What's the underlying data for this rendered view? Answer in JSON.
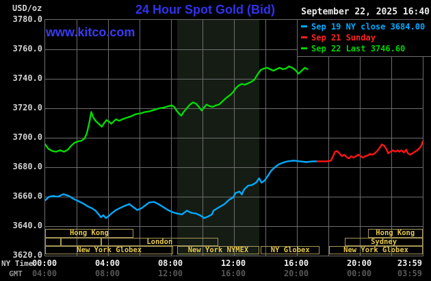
{
  "header": {
    "unit_label": "USD/oz",
    "title": "24 Hour Spot Gold (Bid)",
    "datetime": "September 22, 2025 16:40",
    "watermark": "www.kitco.com"
  },
  "legend": {
    "items": [
      {
        "label": "Sep 19 NY close 3684.00",
        "color": "#00aaff"
      },
      {
        "label": "Sep 21 Sunday",
        "color": "#ff2222"
      },
      {
        "label": "Sep 22 Last 3746.60",
        "color": "#00d400"
      }
    ]
  },
  "axes": {
    "y_ticks": [
      "3780.0",
      "3760.0",
      "3740.0",
      "3720.0",
      "3700.0",
      "3680.0",
      "3660.0",
      "3640.0",
      "3620.0"
    ],
    "x_rows": [
      {
        "label": "NY Time",
        "label_color": "#c8c8c8",
        "tick_color": "#efefef",
        "ticks": [
          "00:00",
          "04:00",
          "08:00",
          "12:00",
          "16:00",
          "20:00",
          "23:59"
        ]
      },
      {
        "label": "GMT",
        "label_color": "#929292",
        "tick_color": "#575757",
        "ticks": [
          "04:00",
          "08:00",
          "12:00",
          "16:00",
          "20:00",
          "00:00",
          "03:59"
        ]
      }
    ],
    "tick_hours": [
      0,
      4,
      8,
      12,
      16,
      20,
      24
    ]
  },
  "sessions": {
    "rows": [
      {
        "boxes": [
          {
            "label": "Hong Kong",
            "t0": 0,
            "t1": 5.6
          },
          {
            "label": "Hong Kong",
            "t0": 20.5,
            "t1": 24
          }
        ]
      },
      {
        "boxes": [
          {
            "label": "",
            "t0": 0,
            "t1": 1.0
          },
          {
            "label": "",
            "t0": 1.0,
            "t1": 3.55
          },
          {
            "label": "London",
            "t0": 3.55,
            "t1": 11.0
          },
          {
            "label": "Sydney",
            "t0": 19.05,
            "t1": 24
          }
        ]
      },
      {
        "boxes": [
          {
            "label": "New York Globex",
            "t0": 0,
            "t1": 8.15
          },
          {
            "label": "New York NYMEX",
            "t0": 8.4,
            "t1": 13.6
          },
          {
            "label": "NY Globex",
            "t0": 13.7,
            "t1": 17.45
          },
          {
            "label": "New York Globex",
            "t0": 18.05,
            "t1": 24
          }
        ]
      }
    ]
  },
  "chart_data": {
    "type": "line",
    "title": "24 Hour Spot Gold (Bid)",
    "xlabel": "NY Time (hours 00:00-23:59)",
    "ylabel": "USD/oz",
    "x_range_hours": [
      0,
      24
    ],
    "ylim": [
      3620,
      3780
    ],
    "y_gridline_step": 20,
    "x_gridline_step_hours": 2,
    "grid": true,
    "legend_position": "top-right",
    "nymex_shade_hours": [
      8.4,
      13.6
    ],
    "series": [
      {
        "name": "Sep 19 NY close 3684.00",
        "color": "#00aaff",
        "points": [
          [
            0,
            3657.5
          ],
          [
            0.25,
            3660
          ],
          [
            0.5,
            3660.5
          ],
          [
            0.8,
            3660
          ],
          [
            1.16,
            3661.7
          ],
          [
            1.5,
            3660.5
          ],
          [
            1.8,
            3658.5
          ],
          [
            2.1,
            3657
          ],
          [
            2.4,
            3655.5
          ],
          [
            2.7,
            3653.5
          ],
          [
            3.0,
            3652
          ],
          [
            3.2,
            3650.5
          ],
          [
            3.4,
            3648
          ],
          [
            3.55,
            3646
          ],
          [
            3.7,
            3647.5
          ],
          [
            3.85,
            3645.5
          ],
          [
            4.0,
            3646.5
          ],
          [
            4.2,
            3648.5
          ],
          [
            4.5,
            3651
          ],
          [
            4.8,
            3652.5
          ],
          [
            5.1,
            3654
          ],
          [
            5.35,
            3655
          ],
          [
            5.6,
            3653
          ],
          [
            5.85,
            3651
          ],
          [
            6.1,
            3652
          ],
          [
            6.35,
            3654
          ],
          [
            6.6,
            3656
          ],
          [
            6.9,
            3656.5
          ],
          [
            7.2,
            3655
          ],
          [
            7.5,
            3653
          ],
          [
            7.8,
            3651
          ],
          [
            8.1,
            3649.5
          ],
          [
            8.4,
            3648.5
          ],
          [
            8.7,
            3648
          ],
          [
            9.0,
            3650.5
          ],
          [
            9.3,
            3649
          ],
          [
            9.6,
            3648.5
          ],
          [
            9.9,
            3647
          ],
          [
            10.1,
            3645.5
          ],
          [
            10.35,
            3646.5
          ],
          [
            10.6,
            3648
          ],
          [
            10.7,
            3650.5
          ],
          [
            11.0,
            3652.5
          ],
          [
            11.4,
            3655
          ],
          [
            11.7,
            3658
          ],
          [
            11.95,
            3659.5
          ],
          [
            12.1,
            3662.5
          ],
          [
            12.35,
            3663.5
          ],
          [
            12.5,
            3661.5
          ],
          [
            12.65,
            3665
          ],
          [
            12.9,
            3667.5
          ],
          [
            13.15,
            3668
          ],
          [
            13.4,
            3669.5
          ],
          [
            13.6,
            3672.5
          ],
          [
            13.75,
            3669.5
          ],
          [
            13.95,
            3671
          ],
          [
            14.15,
            3674
          ],
          [
            14.35,
            3677.5
          ],
          [
            14.6,
            3680
          ],
          [
            14.85,
            3682
          ],
          [
            15.1,
            3683
          ],
          [
            15.4,
            3684
          ],
          [
            15.8,
            3684.5
          ],
          [
            16.2,
            3684
          ],
          [
            16.6,
            3683.5
          ],
          [
            17.0,
            3684
          ],
          [
            17.3,
            3684
          ]
        ]
      },
      {
        "name": "Sep 21 Sunday",
        "color": "#ff1414",
        "points": [
          [
            17.3,
            3684
          ],
          [
            17.6,
            3684
          ],
          [
            17.9,
            3684
          ],
          [
            18.17,
            3684.5
          ],
          [
            18.3,
            3687.5
          ],
          [
            18.42,
            3690.5
          ],
          [
            18.55,
            3691
          ],
          [
            18.7,
            3689.5
          ],
          [
            18.85,
            3687.5
          ],
          [
            19.0,
            3688.5
          ],
          [
            19.15,
            3687
          ],
          [
            19.3,
            3686
          ],
          [
            19.45,
            3687.5
          ],
          [
            19.6,
            3686.5
          ],
          [
            19.75,
            3687.5
          ],
          [
            19.9,
            3688.5
          ],
          [
            20.05,
            3687.5
          ],
          [
            20.2,
            3686.5
          ],
          [
            20.35,
            3687.5
          ],
          [
            20.5,
            3688
          ],
          [
            20.65,
            3689
          ],
          [
            20.8,
            3688.5
          ],
          [
            20.95,
            3689.5
          ],
          [
            21.1,
            3691
          ],
          [
            21.25,
            3693
          ],
          [
            21.4,
            3695.5
          ],
          [
            21.55,
            3694.5
          ],
          [
            21.7,
            3692
          ],
          [
            21.8,
            3689.5
          ],
          [
            21.95,
            3690.5
          ],
          [
            22.1,
            3691.5
          ],
          [
            22.25,
            3690.5
          ],
          [
            22.4,
            3691.5
          ],
          [
            22.5,
            3690.5
          ],
          [
            22.65,
            3691.5
          ],
          [
            22.8,
            3690
          ],
          [
            22.95,
            3692
          ],
          [
            23.05,
            3689.5
          ],
          [
            23.2,
            3688.5
          ],
          [
            23.35,
            3689.5
          ],
          [
            23.5,
            3690.5
          ],
          [
            23.65,
            3691.5
          ],
          [
            23.8,
            3693
          ],
          [
            23.9,
            3694.5
          ],
          [
            24,
            3697.5
          ]
        ]
      },
      {
        "name": "Sep 22 Last 3746.60",
        "color": "#00dc00",
        "points": [
          [
            0,
            3695.5
          ],
          [
            0.2,
            3692.5
          ],
          [
            0.45,
            3691
          ],
          [
            0.7,
            3690.5
          ],
          [
            0.95,
            3691.5
          ],
          [
            1.2,
            3690.5
          ],
          [
            1.45,
            3692
          ],
          [
            1.65,
            3694.5
          ],
          [
            1.85,
            3696.5
          ],
          [
            2.05,
            3697.5
          ],
          [
            2.3,
            3698
          ],
          [
            2.5,
            3699.5
          ],
          [
            2.65,
            3703
          ],
          [
            2.8,
            3710
          ],
          [
            2.93,
            3717.5
          ],
          [
            3.05,
            3714
          ],
          [
            3.2,
            3711.5
          ],
          [
            3.4,
            3709.5
          ],
          [
            3.6,
            3707.5
          ],
          [
            3.75,
            3710
          ],
          [
            3.9,
            3712
          ],
          [
            4.05,
            3711
          ],
          [
            4.2,
            3709.5
          ],
          [
            4.35,
            3711
          ],
          [
            4.5,
            3712.5
          ],
          [
            4.7,
            3711.5
          ],
          [
            4.9,
            3712.5
          ],
          [
            5.15,
            3713.5
          ],
          [
            5.45,
            3714.5
          ],
          [
            5.75,
            3716
          ],
          [
            6.05,
            3716.5
          ],
          [
            6.35,
            3717.5
          ],
          [
            6.65,
            3718
          ],
          [
            6.95,
            3719
          ],
          [
            7.25,
            3720
          ],
          [
            7.55,
            3720.5
          ],
          [
            7.85,
            3721.5
          ],
          [
            8.05,
            3722
          ],
          [
            8.2,
            3721
          ],
          [
            8.35,
            3718.5
          ],
          [
            8.5,
            3716.5
          ],
          [
            8.65,
            3715
          ],
          [
            8.8,
            3717.5
          ],
          [
            9.0,
            3720
          ],
          [
            9.2,
            3722.5
          ],
          [
            9.4,
            3724
          ],
          [
            9.6,
            3723
          ],
          [
            9.8,
            3720.5
          ],
          [
            9.95,
            3718.5
          ],
          [
            10.1,
            3720.5
          ],
          [
            10.25,
            3722.5
          ],
          [
            10.45,
            3721.5
          ],
          [
            10.65,
            3721
          ],
          [
            10.85,
            3722
          ],
          [
            11.05,
            3722.5
          ],
          [
            11.25,
            3724.5
          ],
          [
            11.5,
            3727
          ],
          [
            11.75,
            3729
          ],
          [
            11.95,
            3731
          ],
          [
            12.1,
            3733.5
          ],
          [
            12.3,
            3735.5
          ],
          [
            12.5,
            3736.5
          ],
          [
            12.7,
            3736
          ],
          [
            12.9,
            3737
          ],
          [
            13.1,
            3738
          ],
          [
            13.3,
            3739.5
          ],
          [
            13.5,
            3743
          ],
          [
            13.7,
            3746
          ],
          [
            13.9,
            3747
          ],
          [
            14.1,
            3747.5
          ],
          [
            14.3,
            3746.5
          ],
          [
            14.5,
            3745.5
          ],
          [
            14.7,
            3746.5
          ],
          [
            14.9,
            3747.5
          ],
          [
            15.1,
            3746.5
          ],
          [
            15.3,
            3747
          ],
          [
            15.5,
            3748.5
          ],
          [
            15.7,
            3747.5
          ],
          [
            15.9,
            3746
          ],
          [
            16.1,
            3743.5
          ],
          [
            16.3,
            3745.5
          ],
          [
            16.5,
            3747.5
          ],
          [
            16.67,
            3746.6
          ]
        ]
      }
    ]
  },
  "colors": {
    "background": "#000000",
    "grid": "#6e6e6e",
    "title_blue": "#3032f0",
    "session_border": "#a89858",
    "session_text": "#e5c84f",
    "nymex_shade": "#141c14"
  }
}
